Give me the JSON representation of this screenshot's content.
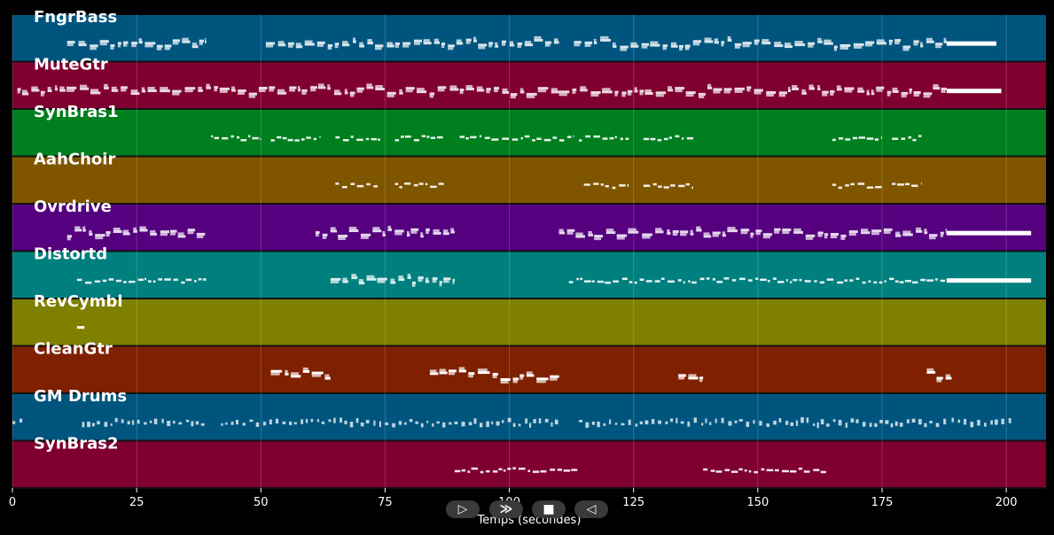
{
  "chart_data": {
    "type": "piano-roll",
    "xlabel": "Temps (secondes)",
    "xlim": [
      0,
      208
    ],
    "xticks": [
      0,
      25,
      50,
      75,
      100,
      125,
      150,
      175,
      200
    ],
    "grid": true,
    "tracks": [
      {
        "name": "FngrBass",
        "color": "#00557f",
        "segments": [
          [
            11,
            39,
            "dense"
          ],
          [
            51,
            110,
            "dense"
          ],
          [
            113,
            188,
            "dense"
          ],
          [
            188,
            198,
            "sustain"
          ]
        ]
      },
      {
        "name": "MuteGtr",
        "color": "#7f0030",
        "segments": [
          [
            1,
            110,
            "dense"
          ],
          [
            110,
            188,
            "dense"
          ],
          [
            188,
            199,
            "sustain"
          ]
        ]
      },
      {
        "name": "SynBras1",
        "color": "#007f1f",
        "segments": [
          [
            40,
            50,
            "sparse"
          ],
          [
            52,
            62,
            "sparse"
          ],
          [
            65,
            74,
            "sparse"
          ],
          [
            77,
            87,
            "sparse"
          ],
          [
            90,
            113,
            "sparse"
          ],
          [
            114,
            124,
            "sparse"
          ],
          [
            127,
            137,
            "sparse"
          ],
          [
            165,
            175,
            "sparse"
          ],
          [
            177,
            183,
            "sparse"
          ]
        ]
      },
      {
        "name": "AahChoir",
        "color": "#7f5500",
        "segments": [
          [
            65,
            74,
            "sparse"
          ],
          [
            77,
            87,
            "sparse"
          ],
          [
            115,
            124,
            "sparse"
          ],
          [
            127,
            137,
            "sparse"
          ],
          [
            165,
            175,
            "sparse"
          ],
          [
            177,
            183,
            "sparse"
          ]
        ]
      },
      {
        "name": "Ovrdrive",
        "color": "#55007f",
        "segments": [
          [
            11,
            39,
            "dense"
          ],
          [
            61,
            89,
            "dense"
          ],
          [
            110,
            188,
            "dense"
          ],
          [
            188,
            205,
            "sustain"
          ]
        ]
      },
      {
        "name": "Distortd",
        "color": "#007f7f",
        "segments": [
          [
            13,
            39,
            "sparse"
          ],
          [
            64,
            89,
            "dense"
          ],
          [
            112,
            188,
            "sparse"
          ],
          [
            188,
            205,
            "sustain"
          ]
        ]
      },
      {
        "name": "RevCymbl",
        "color": "#7f7f00",
        "segments": [
          [
            13,
            14.5,
            "single"
          ]
        ]
      },
      {
        "name": "CleanGtr",
        "color": "#7f2100",
        "segments": [
          [
            52,
            64,
            "chords"
          ],
          [
            84,
            110,
            "chords"
          ],
          [
            134,
            139,
            "chords"
          ],
          [
            184,
            189,
            "chords"
          ]
        ]
      },
      {
        "name": "GM Drums",
        "color": "#00557f",
        "segments": [
          [
            0,
            2,
            "drums"
          ],
          [
            14,
            39,
            "drums"
          ],
          [
            42,
            110,
            "drums"
          ],
          [
            114,
            188,
            "drums"
          ],
          [
            189,
            201,
            "drums"
          ]
        ]
      },
      {
        "name": "SynBras2",
        "color": "#7f0030",
        "segments": [
          [
            89,
            114,
            "sparse"
          ],
          [
            139,
            164,
            "sparse"
          ]
        ]
      }
    ]
  },
  "player": {
    "play_label": "▷",
    "forward_label": "≫",
    "stop_label": "■",
    "back_label": "◁"
  }
}
